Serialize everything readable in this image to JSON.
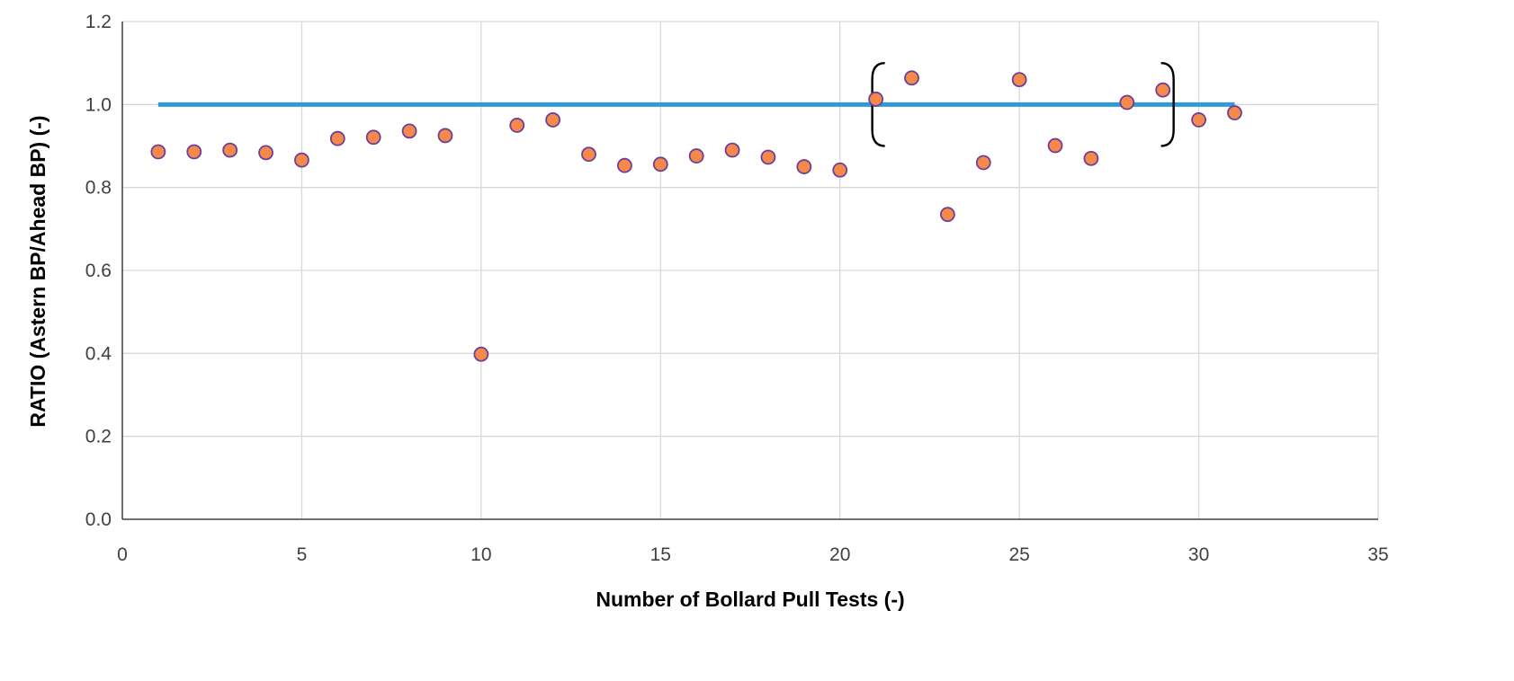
{
  "chart_data": {
    "type": "scatter",
    "xlabel": "Number of Bollard Pull Tests (-)",
    "ylabel": "RATIO (Astern BP/Ahead BP) (-)",
    "xlim": [
      0,
      35
    ],
    "ylim": [
      0,
      1.2
    ],
    "x_ticks": [
      0,
      5,
      10,
      15,
      20,
      25,
      30,
      35
    ],
    "y_ticks": [
      0.0,
      0.2,
      0.4,
      0.6,
      0.8,
      1.0,
      1.2
    ],
    "y_tick_labels": [
      "0.0",
      "0.2",
      "0.4",
      "0.6",
      "0.8",
      "1.0",
      "1.2"
    ],
    "grid": true,
    "legend": "none",
    "series": [
      {
        "type": "scatter",
        "color": "#F4894A",
        "edge_color": "#6B3FA0",
        "x": [
          1,
          2,
          3,
          4,
          5,
          6,
          7,
          8,
          9,
          10,
          11,
          12,
          13,
          14,
          15,
          16,
          17,
          18,
          19,
          20,
          21,
          22,
          23,
          24,
          25,
          26,
          27,
          28,
          29,
          30,
          31
        ],
        "y": [
          0.886,
          0.886,
          0.89,
          0.884,
          0.866,
          0.918,
          0.921,
          0.936,
          0.925,
          0.398,
          0.95,
          0.963,
          0.88,
          0.853,
          0.856,
          0.876,
          0.89,
          0.873,
          0.85,
          0.842,
          1.013,
          1.064,
          0.735,
          0.86,
          1.06,
          0.901,
          0.87,
          1.005,
          1.035,
          0.963,
          0.98
        ]
      },
      {
        "type": "line",
        "color": "#2E9BD6",
        "x": [
          1,
          31
        ],
        "y": [
          1.0,
          1.0
        ]
      }
    ],
    "annotations": [
      {
        "type": "bracket-open",
        "x": 20.9,
        "y_range": [
          0.9,
          1.1
        ]
      },
      {
        "type": "bracket-close",
        "x": 29.3,
        "y_range": [
          0.9,
          1.1
        ]
      }
    ]
  }
}
